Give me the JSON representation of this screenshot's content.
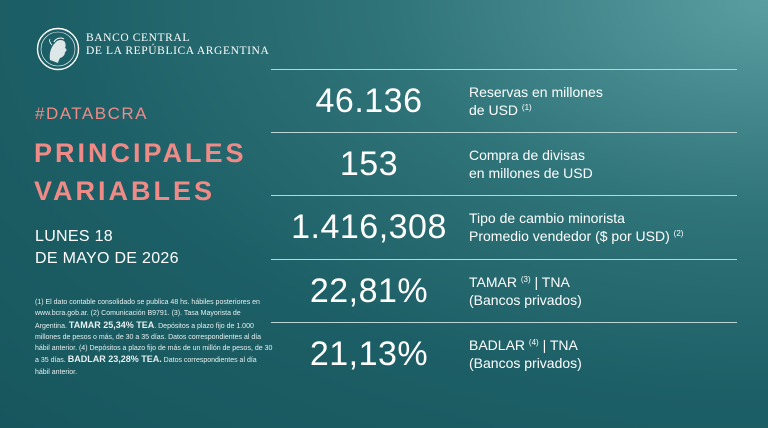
{
  "header": {
    "bank_line1": "BANCO CENTRAL",
    "bank_line2": "DE LA REPÚBLICA ARGENTINA"
  },
  "hashtag": "#DATABCRA",
  "title_line1": "PRINCIPALES",
  "title_line2": "VARIABLES",
  "date_line1": "LUNES 18",
  "date_line2": "DE MAYO DE 2026",
  "notes": {
    "part1": "(1) El dato contable consolidado se publica 48 hs. hábiles posteriores en www.bcra.gob.ar. (2) Comunicación B9791. (3). Tasa Mayorista de Argentina.",
    "tamar_bold": "TAMAR 25,34% TEA",
    "part2": ". Depósitos a plazo fijo de 1.000 millones de pesos o más, de 30 a 35 días. Datos correspondientes al día hábil anterior. (4) Depósitos a plazo fijo de más de un millón de pesos, de 30 a 35 días.",
    "badlar_bold": "BADLAR 23,28% TEA.",
    "part3": " Datos correspondientes al día hábil anterior."
  },
  "variables": [
    {
      "value": "46.136",
      "label_line1": "Reservas en millones",
      "label_line2": "de USD",
      "sup": "(1)"
    },
    {
      "value": "153",
      "label_line1": "Compra de divisas",
      "label_line2": "en millones de USD"
    },
    {
      "value": "1.416,308",
      "label_line1": "Tipo de cambio minorista",
      "label_line2": "Promedio vendedor ($ por USD)",
      "sup": "(2)"
    },
    {
      "value": "22,81%",
      "label_line1_a": "TAMAR",
      "sup": "(3)",
      "label_line1_b": " | TNA",
      "label_line2": "(Bancos privados)"
    },
    {
      "value": "21,13%",
      "label_line1_a": "BADLAR",
      "sup": "(4)",
      "label_line1_b": " | TNA",
      "label_line2": "(Bancos privados)"
    }
  ],
  "colors": {
    "accent": "#f08a86",
    "background": "#1d5f66"
  },
  "icons": {
    "logo": "bcra-seal-icon"
  }
}
